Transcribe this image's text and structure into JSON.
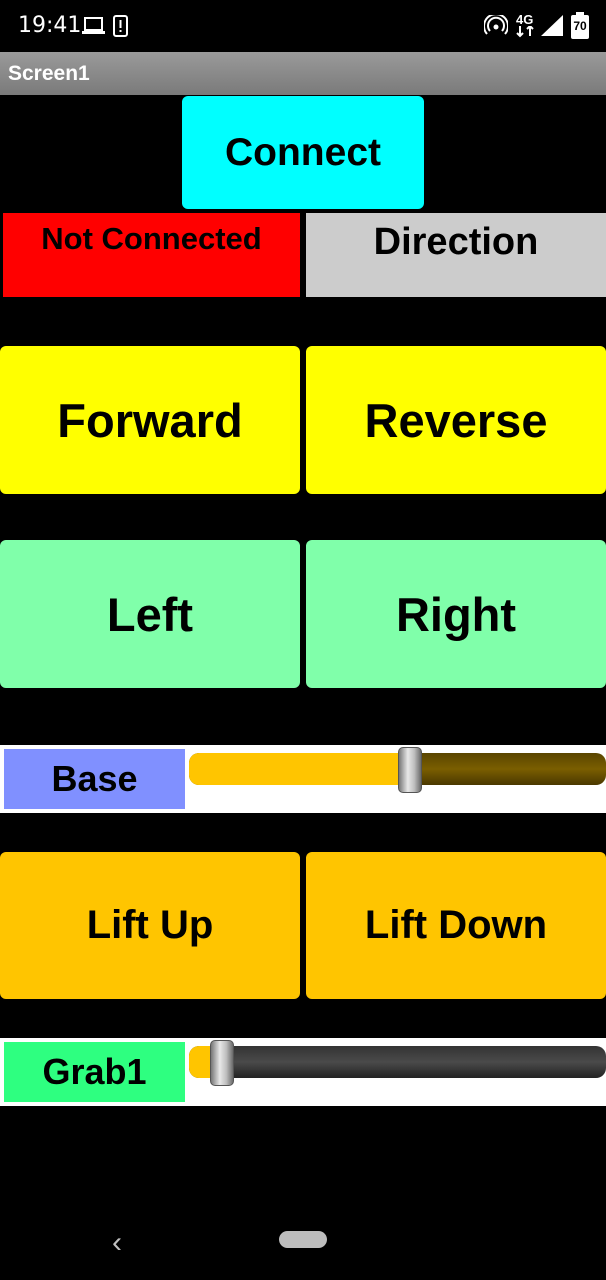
{
  "status_bar": {
    "time": "19:41",
    "network": "4G",
    "battery": "70"
  },
  "title_bar": {
    "title": "Screen1"
  },
  "connect": {
    "label": "Connect"
  },
  "connection_status": {
    "label": "Not Connected"
  },
  "direction": {
    "label": "Direction"
  },
  "drive": {
    "forward": "Forward",
    "reverse": "Reverse",
    "left": "Left",
    "right": "Right"
  },
  "base_slider": {
    "label": "Base",
    "value_fraction": 0.53
  },
  "lift": {
    "up": "Lift Up",
    "down": "Lift Down"
  },
  "grab_slider": {
    "label": "Grab1",
    "value_fraction": 0.08
  },
  "colors": {
    "connect": "#00ffff",
    "not_connected": "#ff0000",
    "direction": "#cccccc",
    "drive_fb": "#ffff00",
    "drive_lr": "#80ffaa",
    "base_label": "#8090ff",
    "lift": "#ffc500",
    "grab_label": "#2eff80",
    "slider_active": "#ffc500"
  }
}
